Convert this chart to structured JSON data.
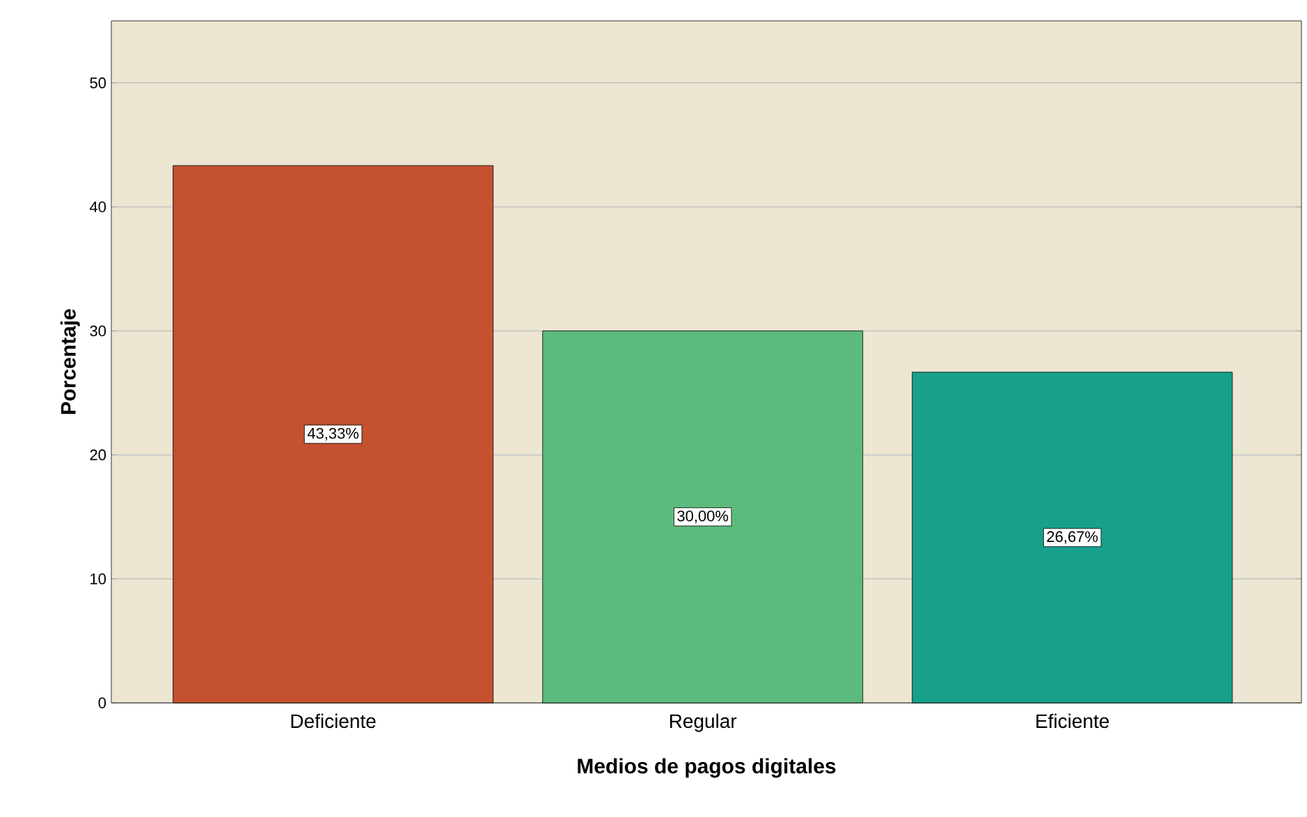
{
  "chart_data": {
    "type": "bar",
    "xlabel": "Medios de pagos digitales",
    "ylabel": "Porcentaje",
    "categories": [
      "Deficiente",
      "Regular",
      "Eficiente"
    ],
    "values": [
      43.33,
      30.0,
      26.67
    ],
    "value_labels": [
      "43,33%",
      "30,00%",
      "26,67%"
    ],
    "colors": [
      "#c4512f",
      "#5dba7d",
      "#17a08b"
    ],
    "ylim": [
      0,
      55
    ],
    "yticks": [
      0,
      10,
      20,
      30,
      40,
      50
    ],
    "grid": "y"
  }
}
